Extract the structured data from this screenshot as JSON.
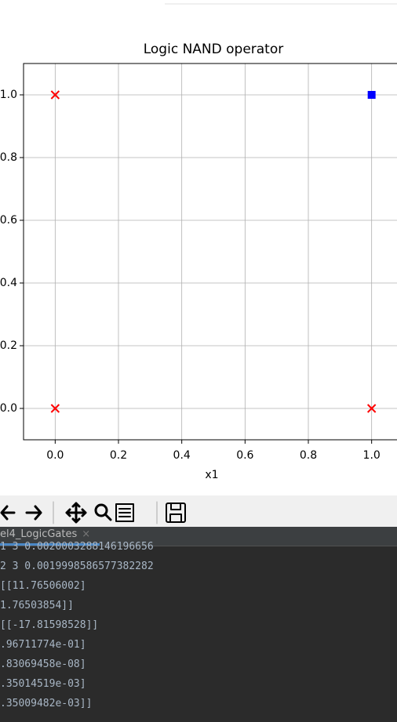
{
  "chart_data": {
    "type": "scatter",
    "title": "Logic NAND operator",
    "x_label": "x1",
    "series": [
      {
        "color": "#ff0000",
        "marker": "x",
        "x": [
          0,
          0,
          1
        ],
        "values": [
          1,
          0,
          0
        ]
      },
      {
        "color": "#0000ff",
        "marker": "s",
        "x": [
          1
        ],
        "values": [
          1
        ]
      }
    ],
    "xlim": [
      -0.1,
      1.1
    ],
    "ylim": [
      -0.1,
      1.1
    ],
    "xticks": [
      {
        "value": 0,
        "label": "0.0"
      },
      {
        "value": 0.2,
        "label": "0.2"
      },
      {
        "value": 0.4,
        "label": "0.4"
      },
      {
        "value": 0.6,
        "label": "0.6"
      },
      {
        "value": 0.8,
        "label": "0.8"
      },
      {
        "value": 1,
        "label": "1.0"
      }
    ],
    "yticks": [
      {
        "value": 0,
        "label": "0.0"
      },
      {
        "value": 0.2,
        "label": "0.2"
      },
      {
        "value": 0.4,
        "label": "0.4"
      },
      {
        "value": 0.6,
        "label": "0.6"
      },
      {
        "value": 0.8,
        "label": "0.8"
      },
      {
        "value": 1,
        "label": "1.0"
      }
    ],
    "grid": true
  },
  "console": {
    "tab": "el4_LogicGates",
    "lines": [
      "1 3 0.0020003288146196656",
      "2 3 0.0019998586577382282",
      "[[11.76506002]",
      "1.76503854]]",
      "[[-17.81598528]]",
      ".96711774e-01]",
      ".83069458e-08]",
      ".35014519e-03]",
      ".35009482e-03]]"
    ]
  }
}
